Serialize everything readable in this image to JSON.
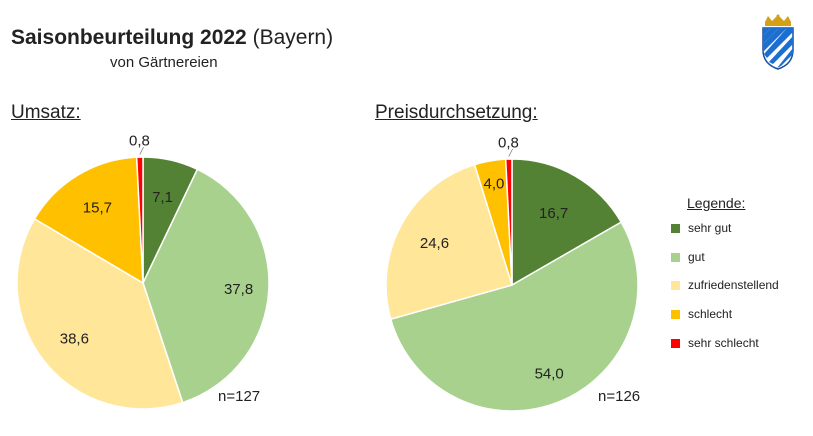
{
  "header": {
    "title_bold": "Saisonbeurteilung 2022",
    "title_rest": " (Bayern)",
    "subtitle": "von Gärtnereien"
  },
  "colors": {
    "sehr_gut": "#548235",
    "gut": "#a9d18e",
    "zufriedenstellend": "#ffe699",
    "schlecht": "#ffc000",
    "sehr_schlecht": "#ff0000"
  },
  "emblem": "bavaria-coat-of-arms",
  "chart_data": [
    {
      "type": "pie",
      "title": "Umsatz:",
      "categories": [
        "sehr gut",
        "gut",
        "zufriedenstellend",
        "schlecht",
        "sehr schlecht"
      ],
      "values": [
        7.1,
        37.8,
        38.6,
        15.7,
        0.8
      ],
      "labels": [
        "7,1",
        "37,8",
        "38,6",
        "15,7",
        "0,8"
      ],
      "n": "n=127"
    },
    {
      "type": "pie",
      "title": "Preisdurchsetzung:",
      "categories": [
        "sehr gut",
        "gut",
        "zufriedenstellend",
        "schlecht",
        "sehr schlecht"
      ],
      "values": [
        16.7,
        54.0,
        24.6,
        4.0,
        0.8
      ],
      "labels": [
        "16,7",
        "54,0",
        "24,6",
        "4,0",
        "0,8"
      ],
      "n": "n=126"
    }
  ],
  "legend": {
    "title": "Legende:",
    "items": [
      "sehr gut",
      "gut",
      "zufriedenstellend",
      "schlecht",
      "sehr schlecht"
    ]
  }
}
